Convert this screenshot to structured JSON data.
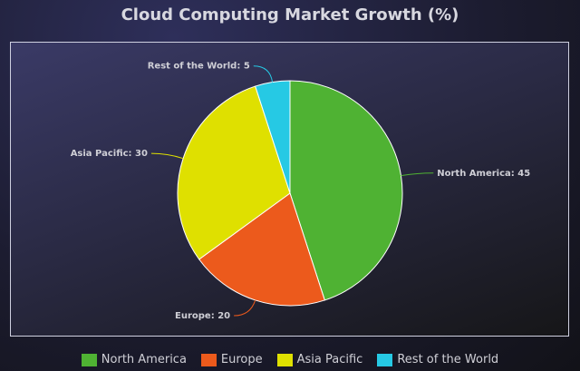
{
  "chart_data": {
    "type": "pie",
    "title": "Cloud Computing Market Growth (%)",
    "categories": [
      "North America",
      "Europe",
      "Asia Pacific",
      "Rest of the World"
    ],
    "values": [
      45,
      20,
      30,
      5
    ],
    "colors": [
      "#4fb233",
      "#ec5a1c",
      "#dfe000",
      "#26c9e4"
    ],
    "start_angle_deg": 90,
    "direction": "clockwise",
    "legend_position": "bottom",
    "data_labels": [
      "North America: 45",
      "Europe: 20",
      "Asia Pacific: 30",
      "Rest of the World: 5"
    ]
  }
}
